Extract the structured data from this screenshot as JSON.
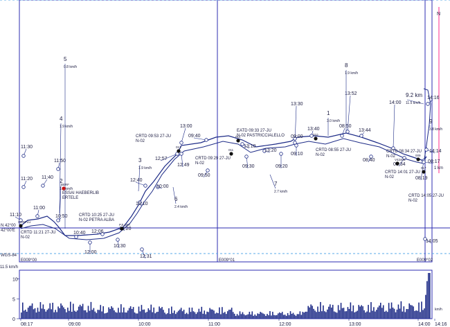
{
  "header": {
    "speed_max_label": "11.5 km/h"
  },
  "grid": {
    "lat_label": "N 42°00",
    "lat_label2": "42°00'E",
    "datum_label": "WGS-84",
    "lon_labels": [
      "E009°00",
      "E009°01",
      "E009°02"
    ],
    "north_glyph": "N",
    "scale_label": "1 km"
  },
  "time_labels": [
    "11:30",
    "11:20",
    "11:40",
    "11:10",
    "11:00",
    "11:50",
    "10:50",
    "10:40",
    "12:06",
    "10:20",
    "12:00",
    "10:30",
    "12:31",
    "12:40",
    "12:57",
    "10:00",
    "10:10",
    "13:00",
    "09:40",
    "12:49",
    "09:50",
    "13:10",
    "09:30",
    "13:20",
    "09:20",
    "13:30",
    "09:00",
    "09:10",
    "13:40",
    "08:50",
    "13:52",
    "13:44",
    "14:00",
    "08:40",
    "08:34",
    "08:19",
    "08:17",
    "14:14",
    "14:16",
    "14:05"
  ],
  "km_markers": [
    {
      "num": "2",
      "speed": "1.9 km/h"
    },
    {
      "num": "3",
      "speed": "1.9 km/h"
    },
    {
      "num": "4",
      "speed": "1.9 km/h"
    },
    {
      "num": "5",
      "speed": "0.8 km/h"
    },
    {
      "num": "6",
      "speed": "2.4 km/h"
    },
    {
      "num": "7",
      "speed": "2.7 km/h"
    },
    {
      "num": "1",
      "speed": "3.0 km/h"
    },
    {
      "num": "8",
      "speed": "1.9 km/h"
    },
    {
      "num": "9.2 km",
      "speed": "11.5 km/h"
    },
    {
      "num": "9",
      "speed": "3.8 km/h"
    }
  ],
  "waypoints": [
    {
      "id": "CONFLU",
      "label": "CRTD 11:21 27-JU",
      "sub": "N-02"
    },
    {
      "id": "BERF",
      "label": "ESSAI HAEBERLIB",
      "sub": "ERTELE"
    },
    {
      "id": "PJLLBA",
      "label": "CRTD 10:25 27-JU",
      "sub": "N-02 PETRA ALBA"
    },
    {
      "id": "013",
      "label": "CRTD 09:53 27-JU",
      "sub": "N-02"
    },
    {
      "id": "011",
      "label": "CRTD 09:29 27-JU",
      "sub": "N-02"
    },
    {
      "id": "012",
      "label": "EATD 09:33 27-JU",
      "sub": "N-02 PASTRICCIALELLO"
    },
    {
      "id": "010",
      "label": "CRTD 08:55 27-JU",
      "sub": "N-02"
    },
    {
      "id": "009",
      "label": "CRTD 08:34 27-JU",
      "sub": "N-02"
    },
    {
      "id": "V42406",
      "label": "CRTD 14:01 27-JU",
      "sub": "N-02"
    },
    {
      "id": "017",
      "label": "CRTD 14:05 27-JU",
      "sub": "N-02"
    }
  ],
  "speed_panel": {
    "unit_label": "km/h",
    "y_ticks": [
      "10",
      "5",
      "0"
    ],
    "time_ticks": [
      "08:17",
      "09:00",
      "10:00",
      "11:00",
      "12:00",
      "13:00",
      "14:00",
      "14:16"
    ],
    "bars_per_hour_avg_kmh": [
      3.1,
      2.6,
      2.2,
      1.4,
      3.0,
      3.2,
      11.5
    ]
  },
  "colors": {
    "grid": "#2b2bb0",
    "track": "#1c2a86",
    "dashed": "#5aa8e8",
    "bars": "#1c2a86",
    "pink": "#ff2a88",
    "wp_red": "#cc1111"
  }
}
